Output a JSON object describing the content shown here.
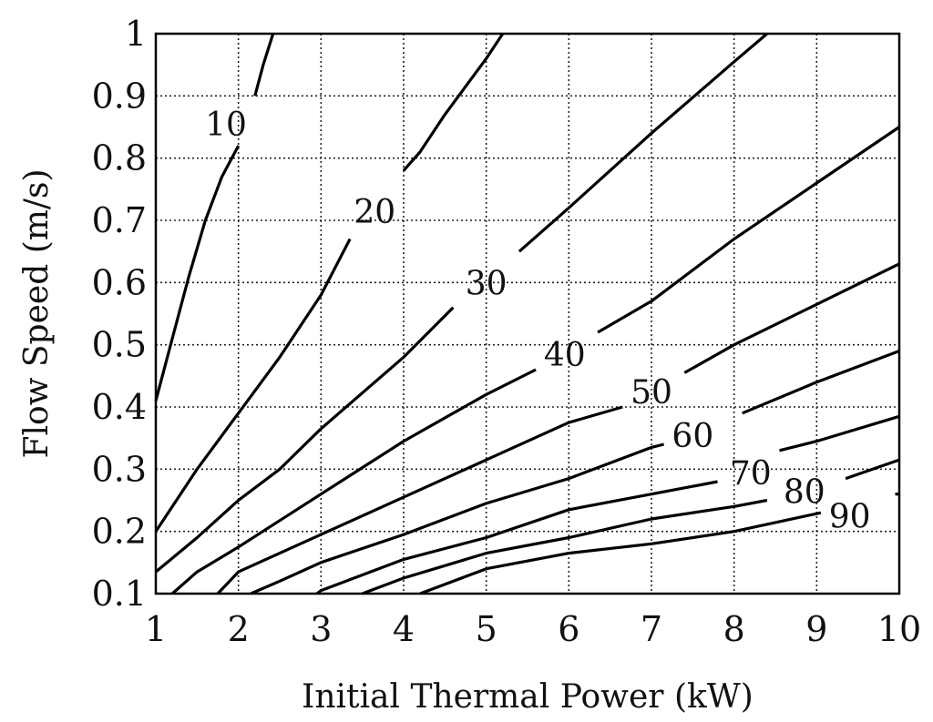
{
  "chart_data": {
    "type": "contour",
    "title": "",
    "xlabel": "Initial Thermal Power (kW)",
    "ylabel": "Flow Speed (m/s)",
    "xlim": [
      1,
      10
    ],
    "ylim": [
      0.1,
      1
    ],
    "x_ticks": [
      "1",
      "2",
      "3",
      "4",
      "5",
      "6",
      "7",
      "8",
      "9",
      "10"
    ],
    "y_ticks": [
      "0.1",
      "0.2",
      "0.3",
      "0.4",
      "0.5",
      "0.6",
      "0.7",
      "0.8",
      "0.9",
      "1"
    ],
    "grid": true,
    "grid_style": "dotted",
    "contours": [
      {
        "level": "10",
        "label_at": [
          1.85,
          0.855
        ],
        "gaps": [
          [
            2.0,
            0.82
          ],
          [
            2.2,
            0.9
          ]
        ],
        "points": [
          [
            1.0,
            0.41
          ],
          [
            1.2,
            0.51
          ],
          [
            1.4,
            0.61
          ],
          [
            1.6,
            0.7
          ],
          [
            1.8,
            0.77
          ],
          [
            2.0,
            0.82
          ],
          [
            2.2,
            0.9
          ],
          [
            2.3,
            0.95
          ],
          [
            2.42,
            1.0
          ]
        ]
      },
      {
        "level": "20",
        "label_at": [
          3.65,
          0.715
        ],
        "gaps": [
          [
            3.35,
            0.67
          ],
          [
            4.0,
            0.78
          ]
        ],
        "points": [
          [
            1.0,
            0.2
          ],
          [
            1.5,
            0.3
          ],
          [
            2.0,
            0.39
          ],
          [
            2.5,
            0.48
          ],
          [
            3.0,
            0.58
          ],
          [
            3.35,
            0.67
          ],
          [
            4.0,
            0.78
          ],
          [
            4.2,
            0.81
          ],
          [
            4.5,
            0.87
          ],
          [
            5.0,
            0.96
          ],
          [
            5.2,
            1.0
          ]
        ]
      },
      {
        "level": "30",
        "label_at": [
          5.0,
          0.6
        ],
        "gaps": [
          [
            4.6,
            0.56
          ],
          [
            5.4,
            0.65
          ]
        ],
        "points": [
          [
            1.0,
            0.135
          ],
          [
            1.5,
            0.19
          ],
          [
            2.0,
            0.25
          ],
          [
            2.5,
            0.3
          ],
          [
            3.0,
            0.365
          ],
          [
            4.0,
            0.48
          ],
          [
            4.6,
            0.56
          ],
          [
            5.4,
            0.65
          ],
          [
            6.0,
            0.72
          ],
          [
            7.0,
            0.84
          ],
          [
            8.0,
            0.955
          ],
          [
            8.4,
            1.0
          ]
        ]
      },
      {
        "level": "40",
        "label_at": [
          5.95,
          0.485
        ],
        "gaps": [
          [
            5.6,
            0.46
          ],
          [
            6.35,
            0.52
          ]
        ],
        "points": [
          [
            1.2,
            0.1
          ],
          [
            1.5,
            0.135
          ],
          [
            2.0,
            0.175
          ],
          [
            3.0,
            0.26
          ],
          [
            4.0,
            0.345
          ],
          [
            5.0,
            0.42
          ],
          [
            5.6,
            0.46
          ],
          [
            6.35,
            0.52
          ],
          [
            7.0,
            0.57
          ],
          [
            8.0,
            0.67
          ],
          [
            9.0,
            0.76
          ],
          [
            10.0,
            0.85
          ]
        ]
      },
      {
        "level": "50",
        "label_at": [
          7.0,
          0.425
        ],
        "gaps": [
          [
            6.65,
            0.4
          ],
          [
            7.4,
            0.455
          ]
        ],
        "points": [
          [
            1.75,
            0.1
          ],
          [
            2.0,
            0.135
          ],
          [
            3.0,
            0.195
          ],
          [
            4.0,
            0.255
          ],
          [
            5.0,
            0.315
          ],
          [
            6.0,
            0.375
          ],
          [
            6.65,
            0.4
          ],
          [
            7.4,
            0.455
          ],
          [
            8.0,
            0.5
          ],
          [
            9.0,
            0.565
          ],
          [
            10.0,
            0.63
          ]
        ]
      },
      {
        "level": "60",
        "label_at": [
          7.5,
          0.355
        ],
        "gaps": [
          [
            7.15,
            0.34
          ],
          [
            8.1,
            0.39
          ]
        ],
        "points": [
          [
            2.15,
            0.1
          ],
          [
            2.5,
            0.12
          ],
          [
            3.0,
            0.15
          ],
          [
            4.0,
            0.195
          ],
          [
            5.0,
            0.245
          ],
          [
            6.0,
            0.285
          ],
          [
            7.0,
            0.335
          ],
          [
            7.15,
            0.34
          ],
          [
            8.1,
            0.39
          ],
          [
            9.0,
            0.44
          ],
          [
            10.0,
            0.49
          ]
        ]
      },
      {
        "level": "70",
        "label_at": [
          8.2,
          0.295
        ],
        "gaps": [
          [
            7.8,
            0.28
          ],
          [
            8.55,
            0.33
          ]
        ],
        "points": [
          [
            2.95,
            0.1
          ],
          [
            3.0,
            0.105
          ],
          [
            4.0,
            0.155
          ],
          [
            5.0,
            0.19
          ],
          [
            6.0,
            0.235
          ],
          [
            7.0,
            0.26
          ],
          [
            7.8,
            0.28
          ],
          [
            8.55,
            0.33
          ],
          [
            9.0,
            0.345
          ],
          [
            10.0,
            0.385
          ]
        ]
      },
      {
        "level": "80",
        "label_at": [
          8.85,
          0.265
        ],
        "gaps": [
          [
            8.4,
            0.25
          ],
          [
            9.35,
            0.285
          ]
        ],
        "points": [
          [
            3.5,
            0.1
          ],
          [
            4.0,
            0.125
          ],
          [
            5.0,
            0.165
          ],
          [
            6.0,
            0.19
          ],
          [
            7.0,
            0.22
          ],
          [
            8.0,
            0.24
          ],
          [
            8.4,
            0.25
          ],
          [
            9.35,
            0.285
          ],
          [
            10.0,
            0.315
          ]
        ]
      },
      {
        "level": "90",
        "label_at": [
          9.4,
          0.225
        ],
        "gaps": [
          [
            9.05,
            0.23
          ],
          [
            9.95,
            0.26
          ]
        ],
        "points": [
          [
            4.2,
            0.1
          ],
          [
            5.0,
            0.14
          ],
          [
            6.0,
            0.165
          ],
          [
            7.0,
            0.18
          ],
          [
            8.0,
            0.2
          ],
          [
            9.05,
            0.23
          ],
          [
            9.95,
            0.26
          ],
          [
            10.0,
            0.26
          ]
        ]
      }
    ]
  }
}
